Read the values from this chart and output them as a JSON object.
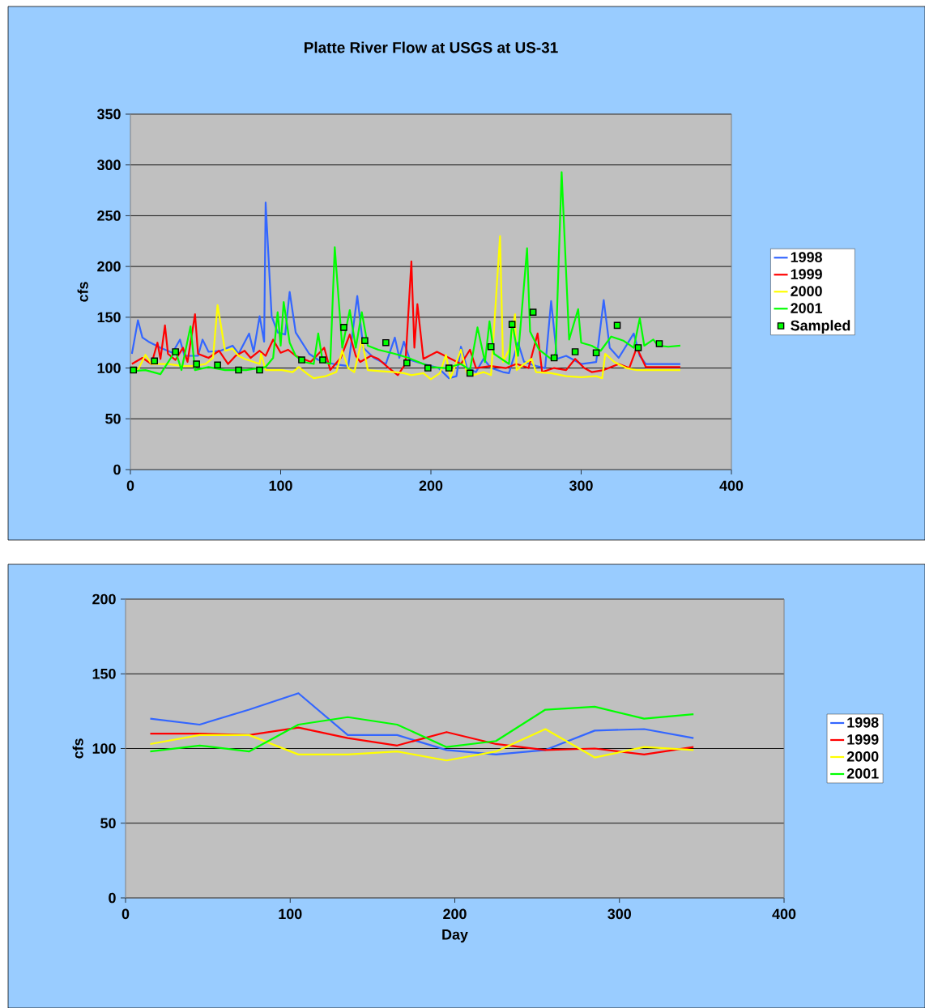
{
  "chart_data": [
    {
      "type": "line",
      "title": "Platte River Flow at USGS at US-31",
      "ylabel": "cfs",
      "xlim": [
        0,
        400
      ],
      "ylim": [
        0,
        350
      ],
      "xticks": [
        0,
        100,
        200,
        300,
        400
      ],
      "yticks": [
        0,
        50,
        100,
        150,
        200,
        250,
        300,
        350
      ],
      "grid": "y",
      "legend": "right",
      "marker": "none",
      "line_style": "solid",
      "series": [
        {
          "name": "1998",
          "color": "#3366ff",
          "x": [
            1,
            5,
            8,
            12,
            20,
            28,
            33,
            36,
            45,
            48,
            52,
            60,
            68,
            72,
            79,
            82,
            86,
            89,
            90,
            94,
            98,
            103,
            106,
            110,
            119,
            125,
            135,
            145,
            151,
            155,
            162,
            170,
            176,
            179,
            182,
            186,
            195,
            205,
            212,
            217,
            220,
            224,
            230,
            235,
            240,
            248,
            252,
            258,
            262,
            270,
            276,
            280,
            284,
            290,
            300,
            310,
            315,
            319,
            325,
            335,
            339,
            343,
            355,
            366
          ],
          "values": [
            114,
            147,
            130,
            126,
            120,
            115,
            128,
            112,
            112,
            128,
            116,
            117,
            122,
            114,
            134,
            116,
            151,
            126,
            263,
            151,
            135,
            133,
            175,
            135,
            114,
            108,
            104,
            102,
            171,
            120,
            110,
            104,
            130,
            110,
            126,
            108,
            104,
            100,
            90,
            92,
            121,
            100,
            96,
            109,
            100,
            96,
            95,
            125,
            106,
            102,
            100,
            166,
            109,
            112,
            104,
            106,
            167,
            120,
            110,
            134,
            112,
            104,
            104,
            104
          ]
        },
        {
          "name": "1999",
          "color": "#ff0000",
          "x": [
            1,
            8,
            14,
            18,
            20,
            23,
            25,
            30,
            35,
            38,
            43,
            45,
            52,
            59,
            65,
            70,
            76,
            80,
            86,
            90,
            95,
            100,
            105,
            110,
            120,
            129,
            133,
            140,
            146,
            150,
            153,
            160,
            165,
            172,
            178,
            183,
            187,
            189,
            191,
            195,
            204,
            220,
            226,
            230,
            240,
            250,
            257,
            265,
            271,
            274,
            282,
            290,
            296,
            302,
            307,
            315,
            325,
            332,
            337,
            343,
            355,
            366
          ],
          "values": [
            104,
            110,
            104,
            125,
            109,
            142,
            114,
            108,
            120,
            106,
            153,
            114,
            110,
            117,
            104,
            112,
            117,
            110,
            117,
            112,
            128,
            115,
            118,
            112,
            106,
            120,
            98,
            110,
            133,
            112,
            106,
            112,
            109,
            100,
            93,
            104,
            205,
            120,
            163,
            109,
            116,
            104,
            118,
            100,
            102,
            100,
            104,
            100,
            134,
            96,
            100,
            98,
            109,
            100,
            96,
            98,
            104,
            100,
            120,
            101,
            101,
            101
          ]
        },
        {
          "name": "2000",
          "color": "#ffff00",
          "x": [
            1,
            5,
            10,
            14,
            25,
            35,
            41,
            50,
            55,
            58,
            63,
            68,
            72,
            76,
            82,
            86,
            87,
            90,
            101,
            108,
            112,
            118,
            122,
            130,
            137,
            141,
            145,
            149,
            154,
            158,
            166,
            176,
            182,
            187,
            195,
            200,
            206,
            210,
            213,
            220,
            224,
            228,
            235,
            240,
            246,
            248,
            252,
            256,
            257,
            262,
            267,
            270,
            280,
            290,
            300,
            310,
            314,
            316,
            322,
            330,
            337,
            350,
            366
          ],
          "values": [
            101,
            98,
            113,
            104,
            104,
            102,
            102,
            104,
            110,
            162,
            117,
            119,
            112,
            109,
            106,
            104,
            114,
            98,
            98,
            96,
            101,
            94,
            90,
            92,
            96,
            117,
            100,
            96,
            128,
            98,
            97,
            96,
            95,
            93,
            95,
            89,
            95,
            113,
            90,
            118,
            95,
            93,
            96,
            93,
            230,
            106,
            118,
            153,
            98,
            104,
            109,
            96,
            95,
            92,
            91,
            92,
            90,
            114,
            106,
            100,
            98,
            98,
            98
          ]
        },
        {
          "name": "2001",
          "color": "#00ff00",
          "x": [
            1,
            10,
            20,
            30,
            34,
            40,
            43,
            52,
            63,
            77,
            90,
            95,
            98,
            100,
            102,
            106,
            110,
            115,
            122,
            125,
            128,
            133,
            136,
            141,
            146,
            150,
            154,
            158,
            165,
            176,
            185,
            200,
            210,
            220,
            226,
            231,
            236,
            239,
            242,
            252,
            254,
            258,
            264,
            266,
            272,
            280,
            283,
            287,
            292,
            298,
            300,
            307,
            313,
            320,
            328,
            335,
            339,
            342,
            348,
            351,
            358,
            366
          ],
          "values": [
            97,
            98,
            94,
            117,
            98,
            141,
            98,
            101,
            98,
            98,
            101,
            110,
            155,
            122,
            165,
            125,
            112,
            106,
            104,
            134,
            106,
            104,
            219,
            120,
            157,
            120,
            155,
            122,
            118,
            114,
            110,
            101,
            100,
            104,
            98,
            140,
            106,
            146,
            114,
            104,
            146,
            112,
            218,
            136,
            118,
            109,
            114,
            293,
            128,
            158,
            125,
            122,
            117,
            131,
            127,
            120,
            149,
            122,
            128,
            122,
            121,
            122
          ]
        },
        {
          "name": "Sampled",
          "type": "scatter",
          "marker": "square",
          "color": "#00ff00",
          "x": [
            2,
            16,
            30,
            44,
            58,
            72,
            86,
            114,
            128,
            142,
            156,
            170,
            184,
            198,
            212,
            226,
            240,
            254,
            268,
            282,
            296,
            310,
            324,
            338,
            352
          ],
          "values": [
            98,
            107,
            116,
            104,
            103,
            98,
            98,
            108,
            108,
            140,
            127,
            125,
            105,
            100,
            100,
            95,
            121,
            143,
            155,
            110,
            116,
            115,
            142,
            120,
            124
          ]
        }
      ]
    },
    {
      "type": "line",
      "xlabel": "Day",
      "ylabel": "cfs",
      "xlim": [
        0,
        400
      ],
      "ylim": [
        0,
        200
      ],
      "xticks": [
        0,
        100,
        200,
        300,
        400
      ],
      "yticks": [
        0,
        50,
        100,
        150,
        200
      ],
      "grid": "y",
      "legend": "right",
      "marker": "none",
      "line_style": "solid",
      "x": [
        15,
        45,
        75,
        105,
        135,
        165,
        195,
        225,
        255,
        285,
        315,
        345
      ],
      "series": [
        {
          "name": "1998",
          "color": "#3366ff",
          "values": [
            120,
            116,
            126,
            137,
            109,
            109,
            99,
            96,
            99,
            112,
            113,
            107
          ]
        },
        {
          "name": "1999",
          "color": "#ff0000",
          "values": [
            110,
            110,
            109,
            114,
            107,
            102,
            111,
            103,
            99,
            100,
            96,
            101
          ]
        },
        {
          "name": "2000",
          "color": "#ffff00",
          "values": [
            103,
            109,
            109,
            96,
            96,
            98,
            92,
            98,
            113,
            94,
            101,
            99
          ]
        },
        {
          "name": "2001",
          "color": "#00ff00",
          "values": [
            98,
            102,
            98,
            116,
            121,
            116,
            101,
            105,
            126,
            128,
            120,
            123
          ]
        }
      ]
    }
  ]
}
